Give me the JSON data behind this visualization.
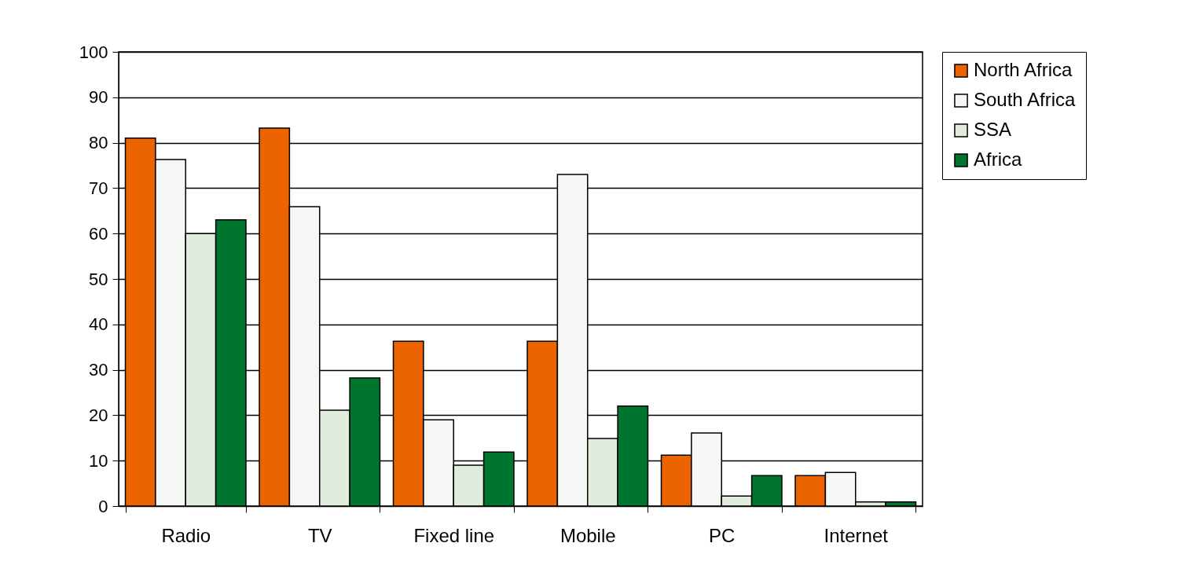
{
  "chart_data": {
    "type": "bar",
    "categories": [
      "Radio",
      "TV",
      "Fixed line",
      "Mobile",
      "PC",
      "Internet"
    ],
    "series": [
      {
        "name": "North Africa",
        "color": "#ec6400",
        "values": [
          81,
          83.2,
          36.3,
          36.3,
          11.2,
          6.7
        ]
      },
      {
        "name": "South Africa",
        "color": "#f5f7f5",
        "values": [
          76.3,
          65.9,
          19,
          73,
          16.1,
          7.4
        ]
      },
      {
        "name": "SSA",
        "color": "#e1eddc",
        "values": [
          60,
          21.1,
          9,
          14.9,
          2.2,
          0.9
        ]
      },
      {
        "name": "Africa",
        "color": "#00752d",
        "values": [
          63,
          28.2,
          11.9,
          22,
          6.7,
          0.9
        ]
      }
    ],
    "ylim": [
      0,
      100
    ],
    "yticks": [
      0,
      10,
      20,
      30,
      40,
      50,
      60,
      70,
      80,
      90,
      100
    ],
    "grid": "y",
    "legend": "right"
  }
}
